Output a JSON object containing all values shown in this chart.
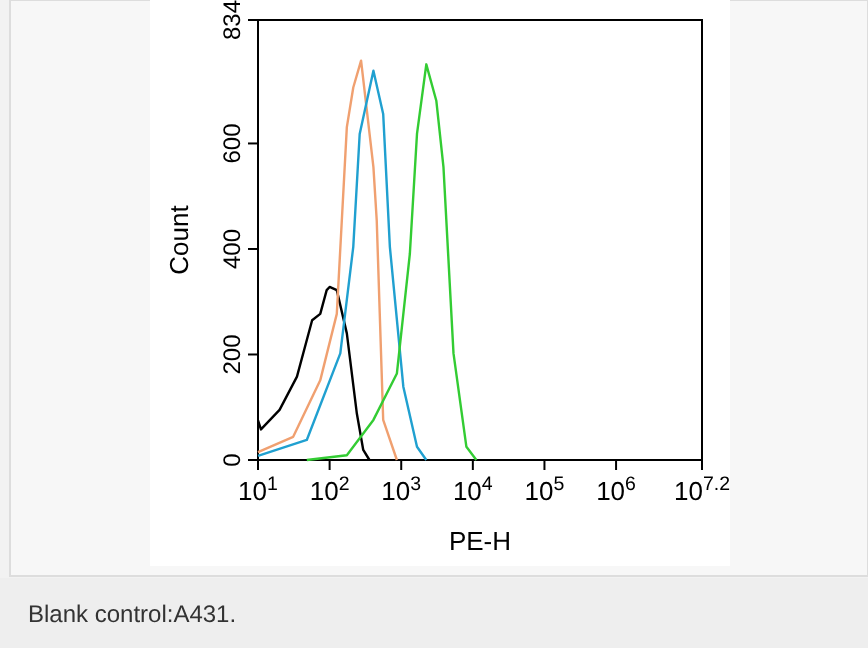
{
  "chart_data": {
    "type": "line",
    "xlabel": "PE-H",
    "ylabel": "Count",
    "log": "x",
    "xlim": [
      10,
      15848932
    ],
    "ylim": [
      0,
      834
    ],
    "xticks": [
      {
        "value": 10,
        "label": "10$^{1}$"
      },
      {
        "value": 100,
        "label": "10$^{2}$"
      },
      {
        "value": 1000,
        "label": "10$^{3}$"
      },
      {
        "value": 10000,
        "label": "10$^{4}$"
      },
      {
        "value": 100000,
        "label": "10$^{5}$"
      },
      {
        "value": 1000000,
        "label": "10$^{6}$"
      },
      {
        "value": 15848932,
        "label": "10$^{7.2}$"
      }
    ],
    "yticks": [
      0,
      200,
      400,
      600,
      834
    ],
    "grid": false,
    "series": [
      {
        "color": "#000000",
        "x": [
          10,
          11,
          20,
          35,
          57,
          74,
          91,
          100,
          126,
          174,
          240,
          295,
          360
        ],
        "values": [
          75,
          58,
          95,
          158,
          265,
          277,
          322,
          328,
          322,
          240,
          88,
          19,
          0
        ]
      },
      {
        "color": "#f0a070",
        "x": [
          10,
          31,
          74,
          126,
          174,
          214,
          275,
          409,
          455,
          560,
          870
        ],
        "values": [
          15,
          44,
          151,
          277,
          631,
          706,
          757,
          555,
          454,
          76,
          0
        ]
      },
      {
        "color": "#20a0d0",
        "x": [
          10,
          48,
          141,
          214,
          263,
          409,
          560,
          694,
          1070,
          1660,
          2240
        ],
        "values": [
          8,
          38,
          202,
          404,
          618,
          738,
          656,
          404,
          139,
          25,
          0
        ]
      },
      {
        "color": "#33cc33",
        "x": [
          48,
          174,
          409,
          870,
          1320,
          1660,
          2240,
          3090,
          3890,
          5370,
          8130,
          11200
        ],
        "values": [
          0,
          9,
          76,
          164,
          391,
          618,
          750,
          681,
          555,
          202,
          25,
          0
        ]
      }
    ],
    "annotations": [
      "Blank control:A431."
    ]
  }
}
